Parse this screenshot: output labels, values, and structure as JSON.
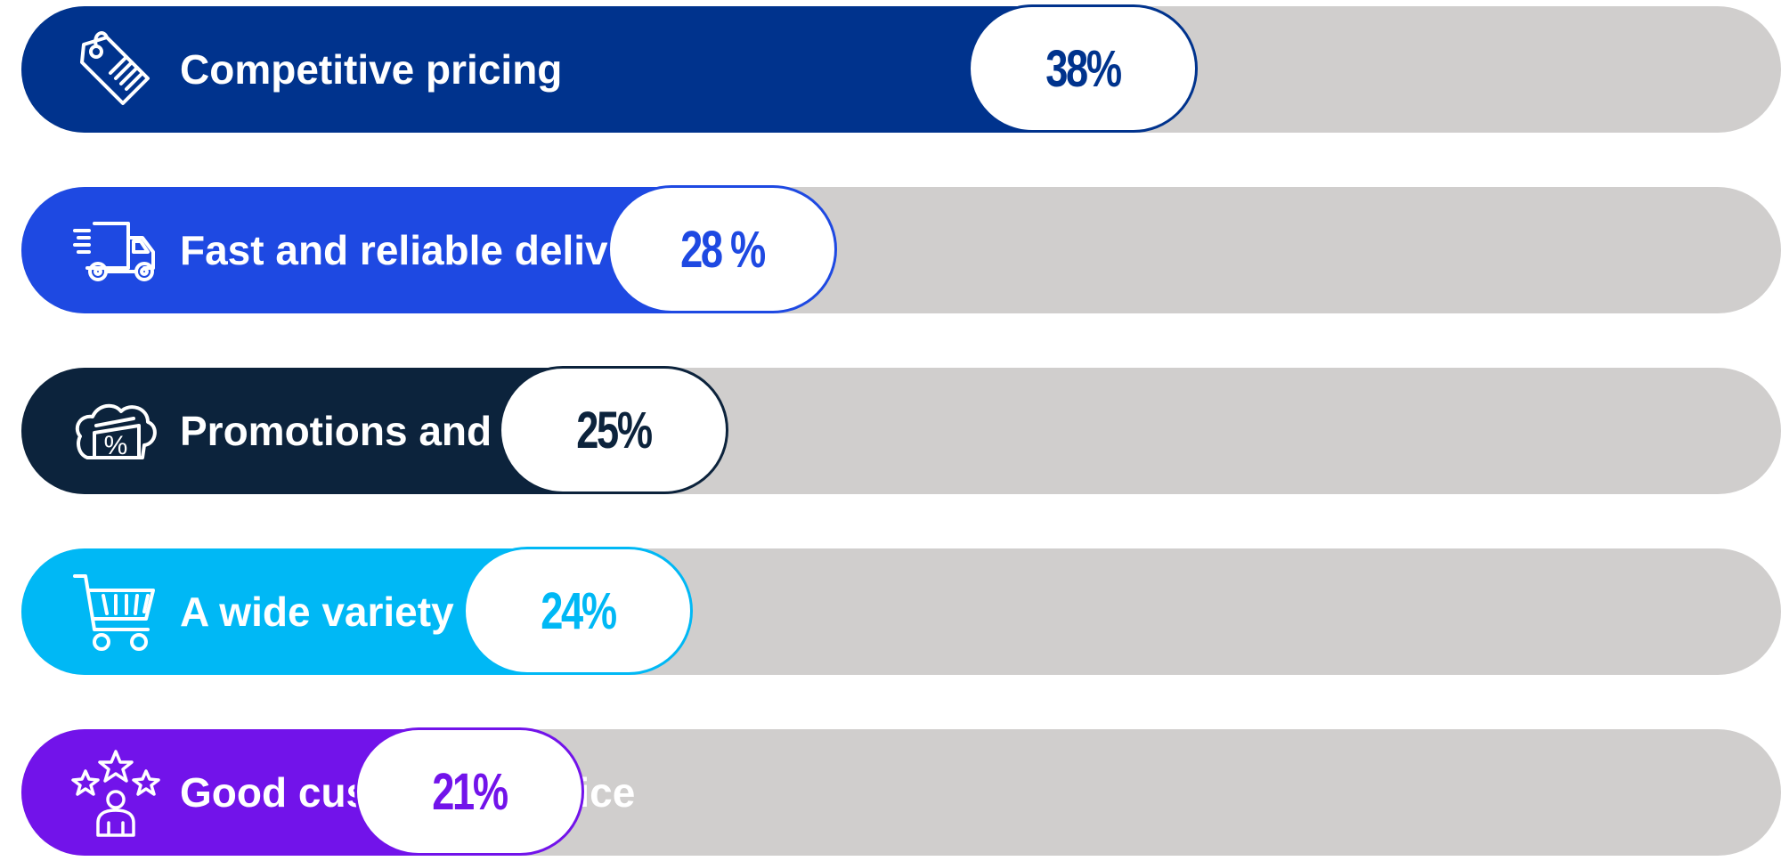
{
  "chart_data": {
    "type": "bar",
    "orientation": "horizontal",
    "title": "",
    "xlabel": "",
    "ylabel": "",
    "xlim": [
      0,
      60
    ],
    "categories": [
      "Competitive pricing",
      "Fast and reliable delivery",
      "Promotions and discounts",
      "A wide variety of products",
      "Good customer service"
    ],
    "values": [
      38,
      28,
      25,
      24,
      21
    ],
    "value_labels": [
      "38%",
      "28 %",
      "25%",
      "24%",
      "21%"
    ],
    "colors": [
      "#00338d",
      "#1e49e2",
      "#0c233c",
      "#00b8f5",
      "#7213ea"
    ],
    "track_color": "#d0cecd",
    "icons": [
      "price-tag-icon",
      "delivery-truck-icon",
      "discount-percent-icon",
      "shopping-cart-icon",
      "customer-rating-icon"
    ]
  }
}
